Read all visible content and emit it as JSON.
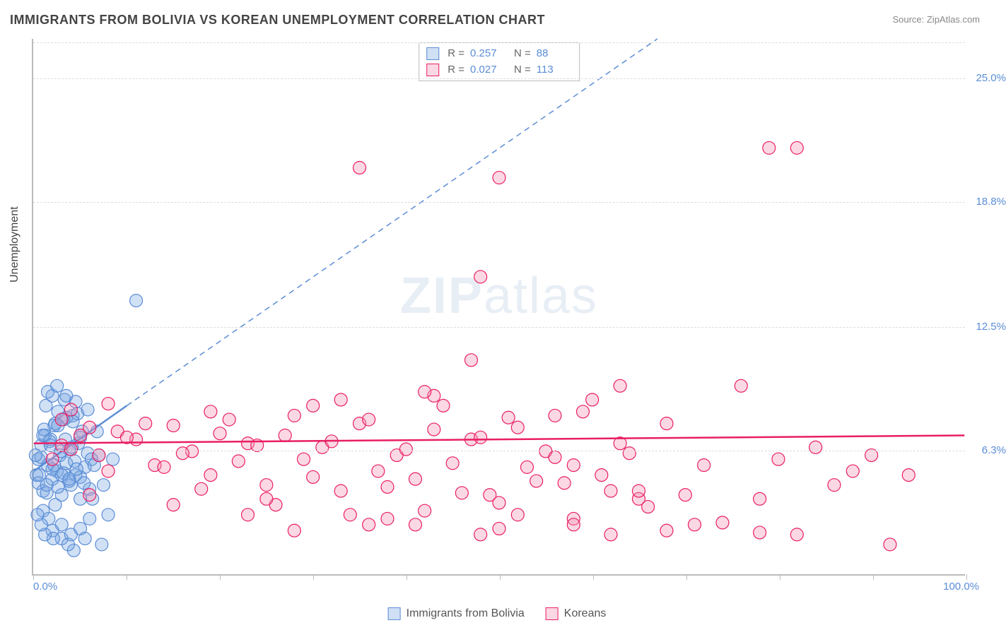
{
  "title": "IMMIGRANTS FROM BOLIVIA VS KOREAN UNEMPLOYMENT CORRELATION CHART",
  "source": "Source: ZipAtlas.com",
  "ylabel": "Unemployment",
  "watermark": {
    "bold": "ZIP",
    "rest": "atlas"
  },
  "colors": {
    "series1": {
      "fill": "rgba(121,167,227,0.35)",
      "stroke": "#5b8dd6"
    },
    "series2": {
      "fill": "rgba(244,143,177,0.35)",
      "stroke": "#e91e63"
    },
    "axis": "#bbb",
    "grid": "#ddd",
    "text_axis": "#5b8dd6",
    "text_title": "#444"
  },
  "chart": {
    "type": "scatter",
    "xlim": [
      0,
      100
    ],
    "ylim": [
      0,
      27
    ],
    "y_ticks": [
      {
        "v": 6.3,
        "label": "6.3%"
      },
      {
        "v": 12.5,
        "label": "12.5%"
      },
      {
        "v": 18.8,
        "label": "18.8%"
      },
      {
        "v": 25.0,
        "label": "25.0%"
      }
    ],
    "x_ticks_major": [
      0,
      50,
      100
    ],
    "x_ticks_minor": [
      10,
      20,
      30,
      40,
      60,
      70,
      80,
      90
    ],
    "x_min_label": "0.0%",
    "x_max_label": "100.0%",
    "marker_radius": 9,
    "marker_stroke_width": 1.2,
    "trend_solid_width": 2.5,
    "trend_dash_width": 1.5,
    "trend_dash_pattern": "8,6"
  },
  "series": [
    {
      "name": "Immigrants from Bolivia",
      "key": "series1",
      "stats": {
        "R": "0.257",
        "N": "88"
      },
      "trend_solid": {
        "x1": 0,
        "y1": 5.2,
        "x2": 10,
        "y2": 8.5
      },
      "trend_dash": {
        "x1": 10,
        "y1": 8.5,
        "x2": 67,
        "y2": 27
      },
      "points": [
        [
          0.3,
          5.0
        ],
        [
          0.5,
          5.8
        ],
        [
          0.8,
          6.5
        ],
        [
          1.0,
          4.2
        ],
        [
          1.2,
          7.0
        ],
        [
          1.5,
          5.5
        ],
        [
          1.8,
          6.8
        ],
        [
          2.0,
          4.8
        ],
        [
          2.2,
          7.5
        ],
        [
          2.5,
          5.2
        ],
        [
          2.8,
          6.0
        ],
        [
          3.0,
          4.0
        ],
        [
          3.2,
          7.8
        ],
        [
          3.5,
          5.6
        ],
        [
          3.8,
          6.3
        ],
        [
          4.0,
          4.5
        ],
        [
          4.2,
          8.0
        ],
        [
          4.5,
          5.0
        ],
        [
          4.8,
          6.6
        ],
        [
          5.0,
          3.8
        ],
        [
          5.2,
          7.2
        ],
        [
          5.5,
          5.4
        ],
        [
          5.8,
          6.1
        ],
        [
          6.0,
          4.3
        ],
        [
          1.0,
          3.2
        ],
        [
          1.3,
          8.5
        ],
        [
          1.6,
          2.8
        ],
        [
          2.0,
          9.0
        ],
        [
          2.3,
          3.5
        ],
        [
          2.6,
          8.2
        ],
        [
          3.0,
          2.5
        ],
        [
          3.3,
          8.8
        ],
        [
          0.5,
          4.6
        ],
        [
          0.8,
          5.9
        ],
        [
          1.1,
          7.3
        ],
        [
          1.4,
          4.1
        ],
        [
          1.7,
          6.7
        ],
        [
          2.0,
          5.3
        ],
        [
          2.3,
          7.6
        ],
        [
          2.6,
          4.4
        ],
        [
          2.9,
          6.2
        ],
        [
          3.2,
          5.1
        ],
        [
          3.5,
          7.9
        ],
        [
          3.8,
          4.7
        ],
        [
          4.1,
          6.4
        ],
        [
          4.4,
          5.7
        ],
        [
          4.7,
          8.1
        ],
        [
          5.0,
          4.9
        ],
        [
          0.2,
          6.0
        ],
        [
          0.6,
          5.0
        ],
        [
          1.0,
          7.0
        ],
        [
          1.4,
          4.5
        ],
        [
          1.8,
          6.5
        ],
        [
          2.2,
          5.5
        ],
        [
          2.6,
          7.5
        ],
        [
          3.0,
          5.0
        ],
        [
          3.4,
          6.8
        ],
        [
          3.8,
          4.8
        ],
        [
          4.2,
          7.7
        ],
        [
          4.6,
          5.3
        ],
        [
          5.0,
          6.9
        ],
        [
          5.4,
          4.6
        ],
        [
          5.8,
          8.3
        ],
        [
          6.2,
          5.8
        ],
        [
          1.5,
          9.2
        ],
        [
          2.0,
          2.2
        ],
        [
          2.5,
          9.5
        ],
        [
          3.0,
          1.8
        ],
        [
          3.5,
          9.0
        ],
        [
          4.0,
          2.0
        ],
        [
          4.5,
          8.7
        ],
        [
          5.0,
          2.3
        ],
        [
          6.5,
          5.5
        ],
        [
          7.0,
          6.0
        ],
        [
          7.5,
          4.5
        ],
        [
          8.0,
          3.0
        ],
        [
          8.5,
          5.8
        ],
        [
          6.0,
          2.8
        ],
        [
          6.3,
          3.8
        ],
        [
          6.8,
          7.2
        ],
        [
          7.3,
          1.5
        ],
        [
          4.3,
          1.2
        ],
        [
          2.1,
          1.8
        ],
        [
          3.7,
          1.5
        ],
        [
          5.5,
          1.8
        ],
        [
          1.2,
          2.0
        ],
        [
          0.8,
          2.5
        ],
        [
          0.4,
          3.0
        ],
        [
          11.0,
          13.8
        ]
      ]
    },
    {
      "name": "Koreans",
      "key": "series2",
      "stats": {
        "R": "0.027",
        "N": "113"
      },
      "trend_solid": {
        "x1": 0,
        "y1": 6.6,
        "x2": 100,
        "y2": 7.0
      },
      "trend_dash": null,
      "points": [
        [
          3,
          6.5
        ],
        [
          5,
          7.0
        ],
        [
          7,
          6.0
        ],
        [
          9,
          7.2
        ],
        [
          11,
          6.8
        ],
        [
          13,
          5.5
        ],
        [
          15,
          7.5
        ],
        [
          17,
          6.2
        ],
        [
          19,
          5.0
        ],
        [
          21,
          7.8
        ],
        [
          23,
          6.6
        ],
        [
          25,
          4.5
        ],
        [
          27,
          7.0
        ],
        [
          29,
          5.8
        ],
        [
          31,
          6.4
        ],
        [
          33,
          4.2
        ],
        [
          35,
          7.6
        ],
        [
          37,
          5.2
        ],
        [
          39,
          6.0
        ],
        [
          41,
          4.8
        ],
        [
          43,
          7.3
        ],
        [
          45,
          5.6
        ],
        [
          47,
          6.8
        ],
        [
          49,
          4.0
        ],
        [
          51,
          7.9
        ],
        [
          53,
          5.4
        ],
        [
          55,
          6.2
        ],
        [
          57,
          4.6
        ],
        [
          59,
          8.2
        ],
        [
          61,
          5.0
        ],
        [
          63,
          6.6
        ],
        [
          65,
          3.8
        ],
        [
          2,
          5.8
        ],
        [
          4,
          6.3
        ],
        [
          6,
          7.4
        ],
        [
          8,
          5.2
        ],
        [
          10,
          6.9
        ],
        [
          12,
          7.6
        ],
        [
          14,
          5.4
        ],
        [
          16,
          6.1
        ],
        [
          18,
          4.3
        ],
        [
          20,
          7.1
        ],
        [
          22,
          5.7
        ],
        [
          24,
          6.5
        ],
        [
          26,
          3.5
        ],
        [
          28,
          8.0
        ],
        [
          30,
          4.9
        ],
        [
          32,
          6.7
        ],
        [
          34,
          3.0
        ],
        [
          36,
          7.8
        ],
        [
          38,
          4.4
        ],
        [
          40,
          6.3
        ],
        [
          42,
          3.2
        ],
        [
          44,
          8.5
        ],
        [
          46,
          4.1
        ],
        [
          48,
          6.9
        ],
        [
          50,
          3.6
        ],
        [
          52,
          7.4
        ],
        [
          54,
          4.7
        ],
        [
          56,
          5.9
        ],
        [
          58,
          2.8
        ],
        [
          60,
          8.8
        ],
        [
          62,
          4.2
        ],
        [
          64,
          6.1
        ],
        [
          66,
          3.4
        ],
        [
          68,
          7.6
        ],
        [
          70,
          4.0
        ],
        [
          72,
          5.5
        ],
        [
          74,
          2.6
        ],
        [
          76,
          9.5
        ],
        [
          78,
          3.8
        ],
        [
          80,
          5.8
        ],
        [
          82,
          2.0
        ],
        [
          84,
          6.4
        ],
        [
          86,
          4.5
        ],
        [
          88,
          5.2
        ],
        [
          90,
          6.0
        ],
        [
          92,
          1.5
        ],
        [
          94,
          5.0
        ],
        [
          25,
          3.8
        ],
        [
          33,
          8.8
        ],
        [
          41,
          2.5
        ],
        [
          47,
          10.8
        ],
        [
          52,
          3.0
        ],
        [
          58,
          5.5
        ],
        [
          65,
          4.2
        ],
        [
          71,
          2.5
        ],
        [
          35,
          20.5
        ],
        [
          50,
          20.0
        ],
        [
          79,
          21.5
        ],
        [
          82,
          21.5
        ],
        [
          48,
          15.0
        ],
        [
          43,
          9.0
        ],
        [
          63,
          9.5
        ],
        [
          28,
          2.2
        ],
        [
          38,
          2.8
        ],
        [
          48,
          2.0
        ],
        [
          58,
          2.5
        ],
        [
          68,
          2.2
        ],
        [
          78,
          2.1
        ],
        [
          3,
          7.8
        ],
        [
          4,
          8.3
        ],
        [
          6,
          4.0
        ],
        [
          8,
          8.6
        ],
        [
          15,
          3.5
        ],
        [
          19,
          8.2
        ],
        [
          23,
          3.0
        ],
        [
          30,
          8.5
        ],
        [
          36,
          2.5
        ],
        [
          42,
          9.2
        ],
        [
          50,
          2.3
        ],
        [
          56,
          8.0
        ],
        [
          62,
          2.0
        ]
      ]
    }
  ],
  "bottom_legend": [
    {
      "label": "Immigrants from Bolivia",
      "key": "series1"
    },
    {
      "label": "Koreans",
      "key": "series2"
    }
  ]
}
